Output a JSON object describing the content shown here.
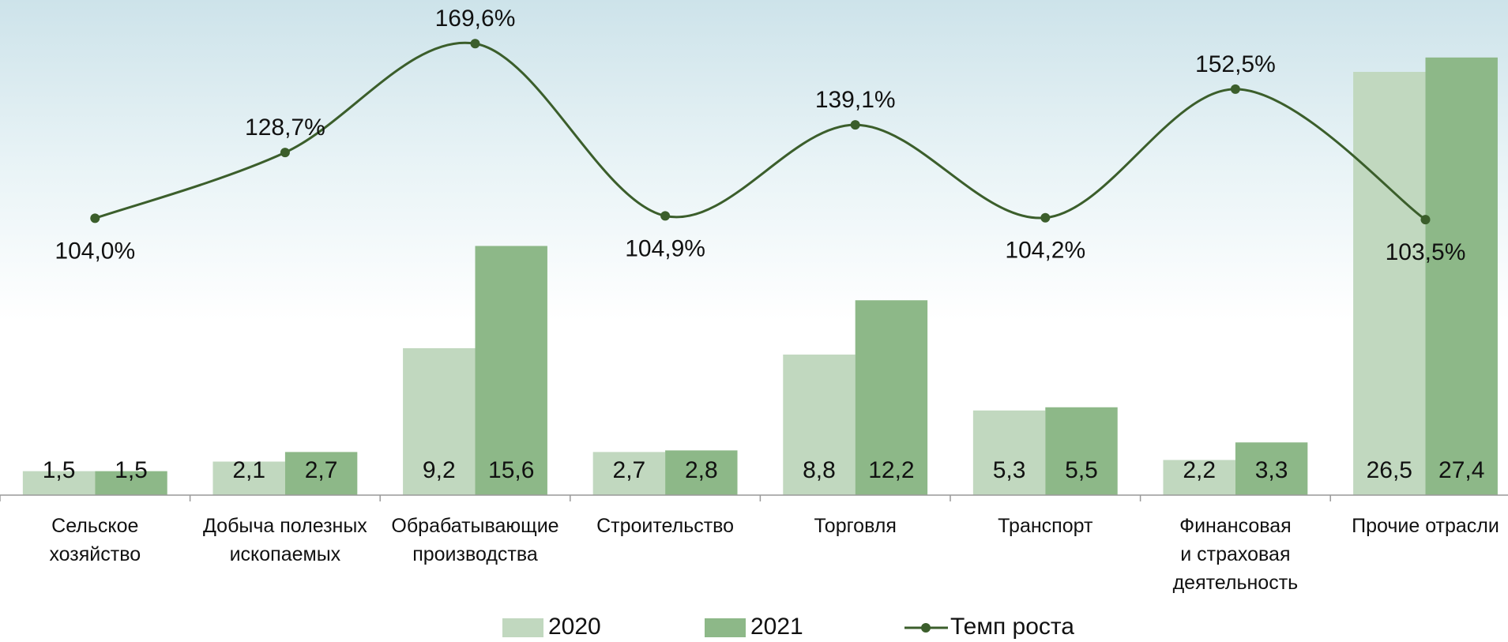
{
  "chart_data": {
    "type": "bar-line",
    "categories": [
      "Сельское\nхозяйство",
      "Добыча полезных\nископаемых",
      "Обрабатывающие\nпроизводства",
      "Строительство",
      "Торговля",
      "Транспорт",
      "Финансовая\nи страховая\nдеятельность",
      "Прочие отрасли"
    ],
    "series": [
      {
        "name": "2020",
        "type": "bar",
        "color": "#c1d8bf",
        "values": [
          1.5,
          2.1,
          9.2,
          2.7,
          8.8,
          5.3,
          2.2,
          26.5
        ],
        "value_labels": [
          "1,5",
          "2,1",
          "9,2",
          "2,7",
          "8,8",
          "5,3",
          "2,2",
          "26,5"
        ]
      },
      {
        "name": "2021",
        "type": "bar",
        "color": "#8db888",
        "values": [
          1.5,
          2.7,
          15.6,
          2.8,
          12.2,
          5.5,
          3.3,
          27.4
        ],
        "value_labels": [
          "1,5",
          "2,7",
          "15,6",
          "2,8",
          "12,2",
          "5,5",
          "3,3",
          "27,4"
        ]
      },
      {
        "name": "Темп роста",
        "type": "line",
        "axis": "y2",
        "color": "#3b5e2b",
        "values": [
          104.0,
          128.7,
          169.6,
          104.9,
          139.1,
          104.2,
          152.5,
          103.5
        ],
        "value_labels": [
          "104,0%",
          "128,7%",
          "169,6%",
          "104,9%",
          "139,1%",
          "104,2%",
          "152,5%",
          "103,5%"
        ]
      }
    ],
    "ylim": [
      0,
      31
    ],
    "y2lim": [
      0,
      186
    ]
  }
}
